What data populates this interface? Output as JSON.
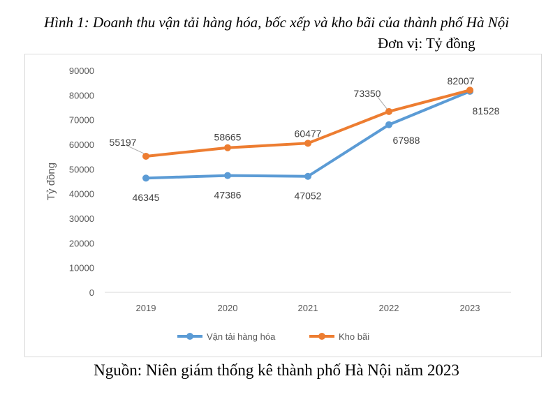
{
  "title": "Hình 1: Doanh thu vận tải hàng hóa, bốc xếp và kho bãi của thành phố Hà Nội",
  "unit": "Đơn vị: Tỷ đồng",
  "source": "Nguồn: Niên giám thống kê thành phố Hà Nội năm 2023",
  "chart_data": {
    "type": "line",
    "title": "",
    "xlabel": "",
    "ylabel": "Tỷ đồng",
    "categories": [
      "2019",
      "2020",
      "2021",
      "2022",
      "2023"
    ],
    "ylim": [
      0,
      90000
    ],
    "yticks": [
      "0",
      "10000",
      "20000",
      "30000",
      "40000",
      "50000",
      "60000",
      "70000",
      "80000",
      "90000"
    ],
    "grid": false,
    "legend": "bottom",
    "series": [
      {
        "name": "Vận tải hàng hóa",
        "color": "#5b9bd5",
        "values": [
          46345,
          47386,
          47052,
          67988,
          81528
        ],
        "labels": [
          "46345",
          "47386",
          "47052",
          "67988",
          "81528"
        ]
      },
      {
        "name": "Kho bãi",
        "color": "#ed7d31",
        "values": [
          55197,
          58665,
          60477,
          73350,
          82007
        ],
        "labels": [
          "55197",
          "58665",
          "60477",
          "73350",
          "82007"
        ]
      }
    ]
  }
}
